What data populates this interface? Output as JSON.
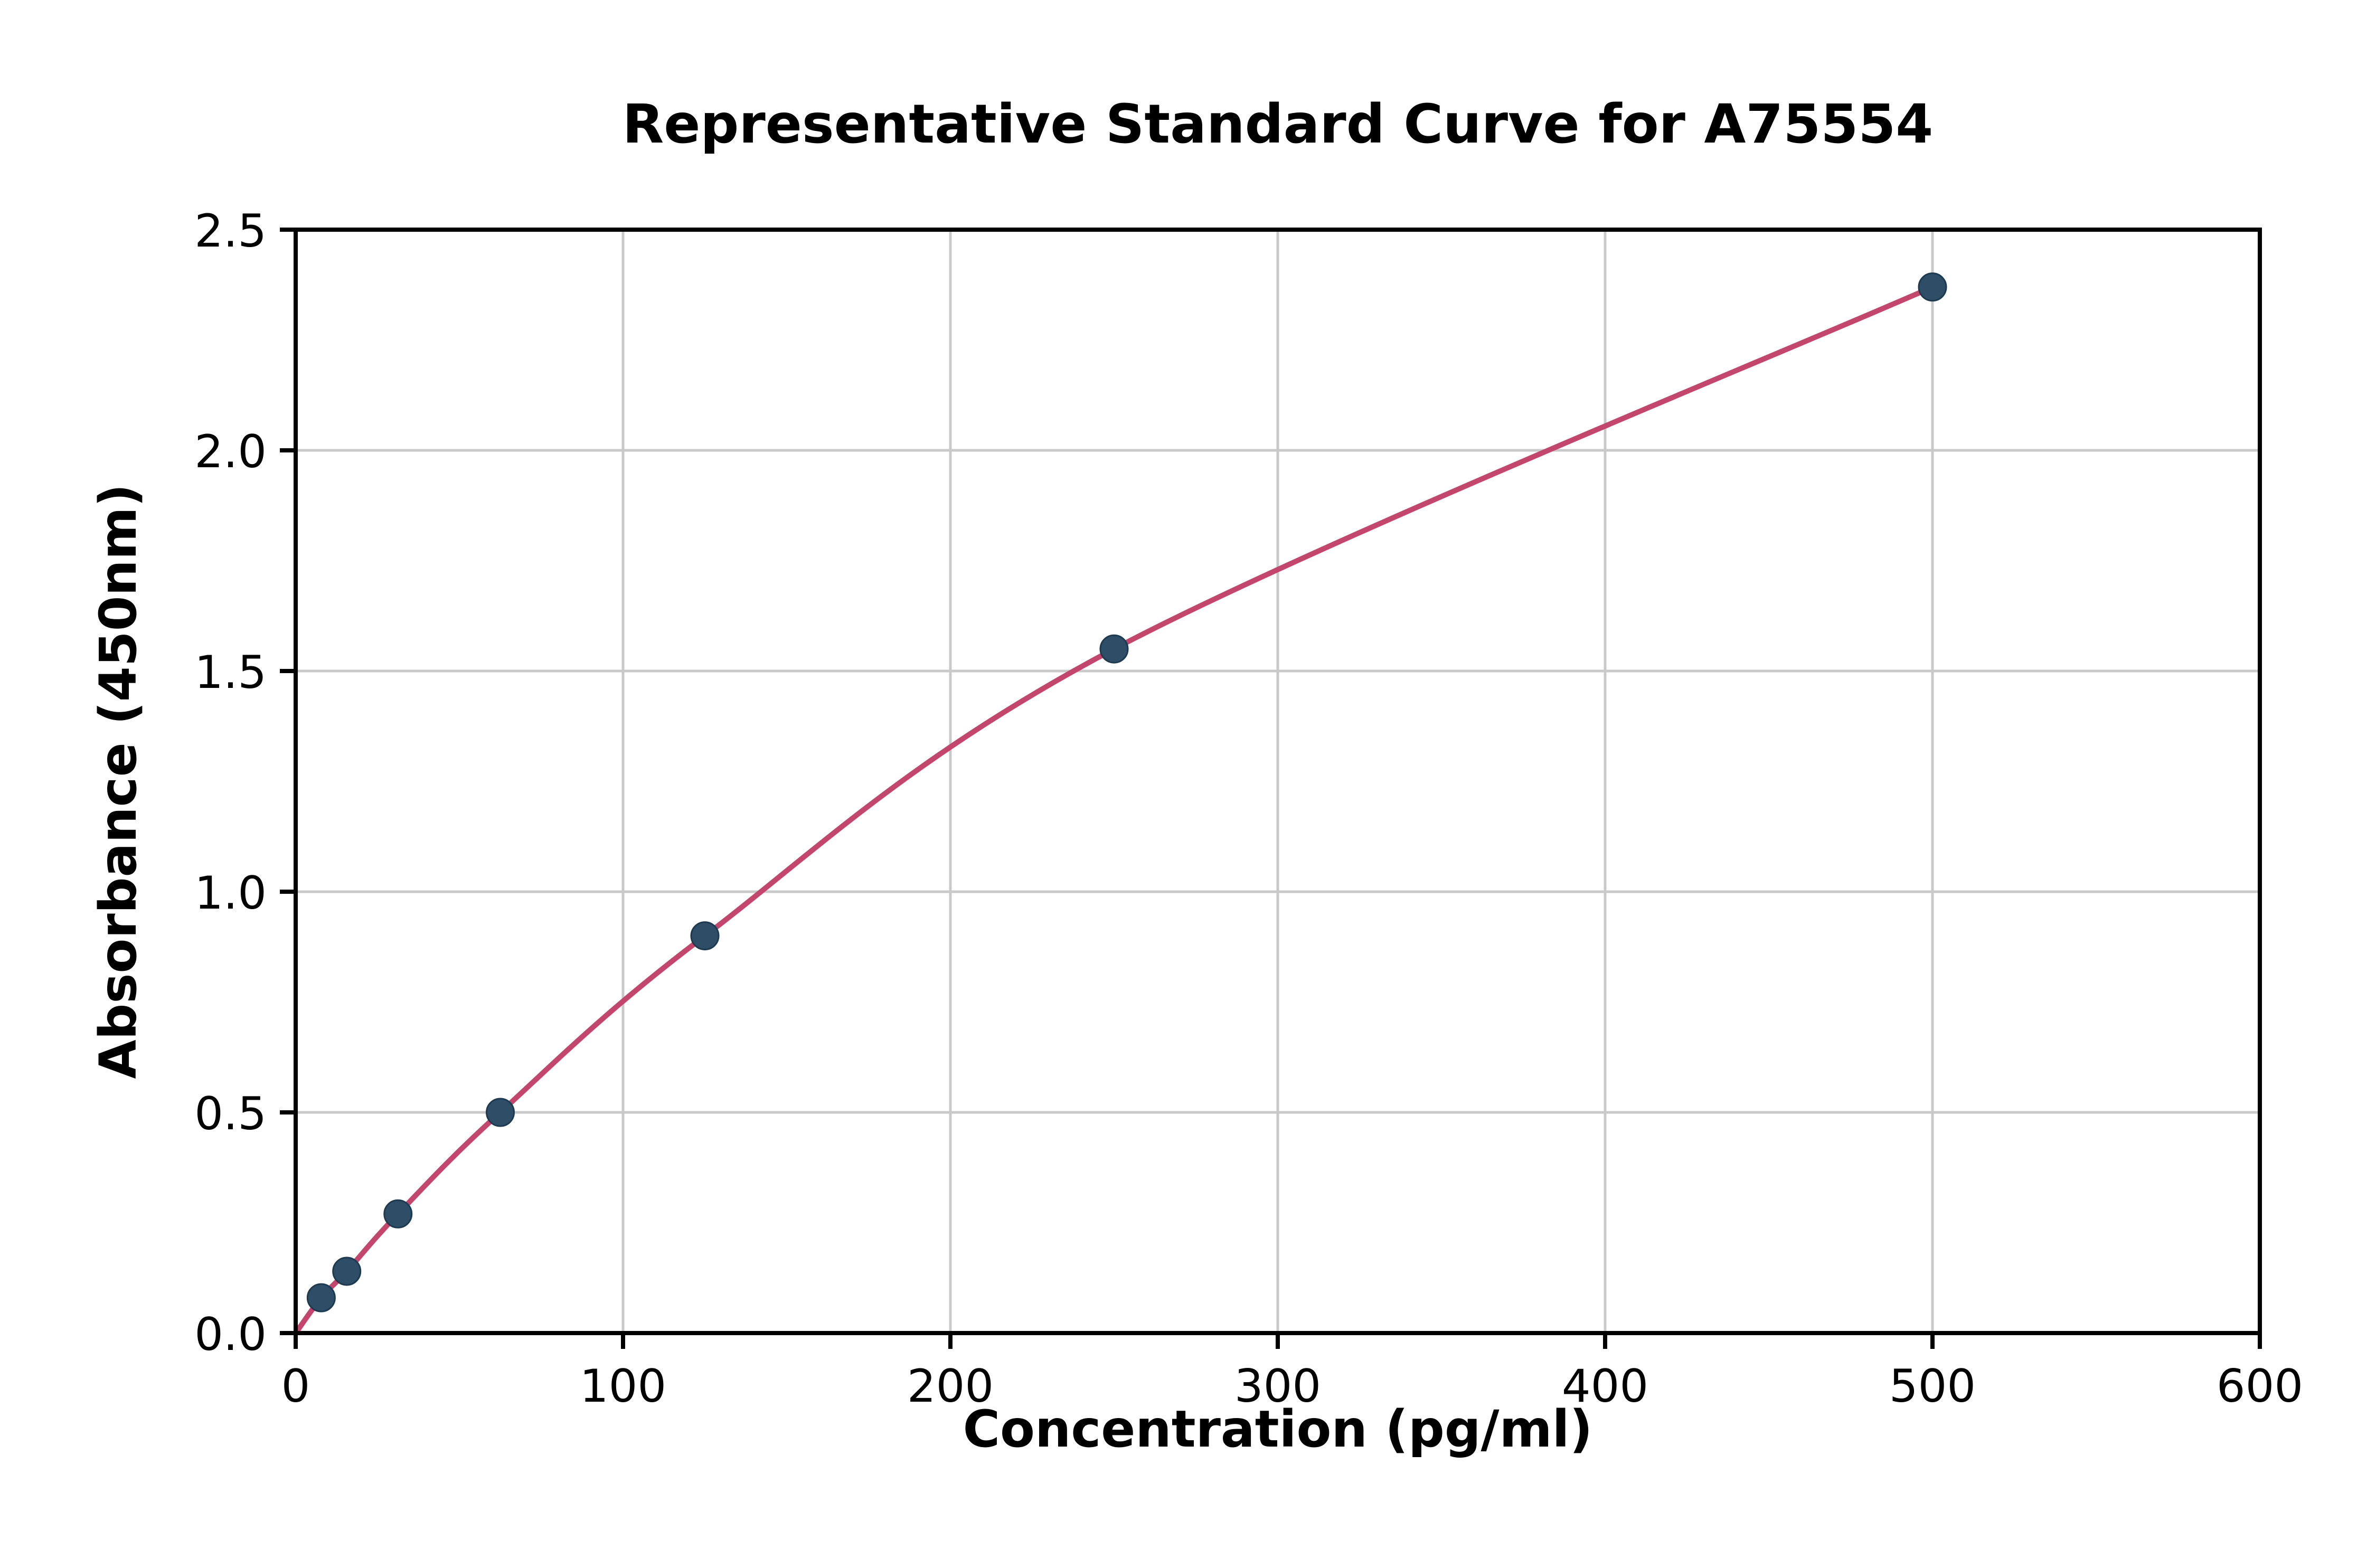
{
  "chart_data": {
    "type": "scatter",
    "title": "Representative Standard Curve for A75554",
    "xlabel": "Concentration (pg/ml)",
    "ylabel": "Absorbance (450nm)",
    "xlim": [
      0,
      600
    ],
    "ylim": [
      0,
      2.5
    ],
    "xticks": [
      0,
      100,
      200,
      300,
      400,
      500,
      600
    ],
    "xticklabels": [
      "0",
      "100",
      "200",
      "300",
      "400",
      "500",
      "600"
    ],
    "yticks": [
      0.0,
      0.5,
      1.0,
      1.5,
      2.0,
      2.5
    ],
    "yticklabels": [
      "0.0",
      "0.5",
      "1.0",
      "1.5",
      "2.0",
      "2.5"
    ],
    "grid": true,
    "legend": "none",
    "curve_start": {
      "x": 0,
      "y": 0
    },
    "points": [
      {
        "x": 7.8,
        "y": 0.08
      },
      {
        "x": 15.6,
        "y": 0.14
      },
      {
        "x": 31.25,
        "y": 0.27
      },
      {
        "x": 62.5,
        "y": 0.5
      },
      {
        "x": 125,
        "y": 0.9
      },
      {
        "x": 250,
        "y": 1.55
      },
      {
        "x": 500,
        "y": 2.37
      }
    ],
    "colors": {
      "curve": "#c3476d",
      "points": "#2e4d66",
      "point_edge": "#1d3a50",
      "grid": "#c9c9c9",
      "axis": "#000000",
      "background": "#ffffff"
    }
  }
}
